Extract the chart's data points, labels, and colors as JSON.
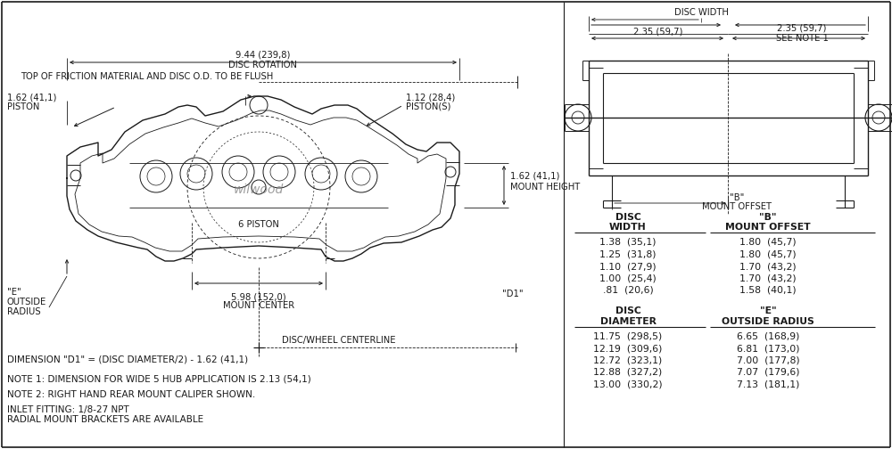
{
  "bg_color": "#ffffff",
  "line_color": "#1a1a1a",
  "text_color": "#1a1a1a",
  "top_note": "TOP OF FRICTION MATERIAL AND DISC O.D. TO BE FLUSH",
  "dim_9_44": "9.44 (239,8)",
  "dim_disc_rotation": "DISC ROTATION",
  "dim_1_62_piston_val": "1.62 (41,1)",
  "dim_1_62_piston_lbl": "PISTON",
  "dim_1_12_val": "1.12 (28,4)",
  "dim_1_12_lbl": "PISTON(S)",
  "dim_1_62_mount_val": "1.62 (41,1)",
  "dim_1_62_mount_lbl": "MOUNT HEIGHT",
  "dim_6piston": "6 PISTON",
  "dim_e_1": "\"E\"",
  "dim_e_2": "OUTSIDE",
  "dim_e_3": "RADIUS",
  "dim_5_98_val": "5.98 (152,0)",
  "dim_5_98_lbl": "MOUNT CENTER",
  "dim_d1": "\"D1\"",
  "dim_disc_wheel": "DISC/WHEEL CENTERLINE",
  "dim_disc_width": "DISC WIDTH",
  "dim_2_35_left": "2.35 (59,7)",
  "dim_2_35_right": "2.35 (59,7)",
  "dim_see_note1": "SEE NOTE 1",
  "dim_b_1": "\"B\"",
  "dim_b_2": "MOUNT OFFSET",
  "note_d1": "DIMENSION \"D1\" = (DISC DIAMETER/2) - 1.62 (41,1)",
  "note_1": "NOTE 1: DIMENSION FOR WIDE 5 HUB APPLICATION IS 2.13 (54,1)",
  "note_2": "NOTE 2: RIGHT HAND REAR MOUNT CALIPER SHOWN.",
  "note_inlet": "INLET FITTING: 1/8-27 NPT",
  "note_radial": "RADIAL MOUNT BRACKETS ARE AVAILABLE",
  "table1_col1_header1": "DISC",
  "table1_col1_header2": "WIDTH",
  "table1_col2_header1": "\"B\"",
  "table1_col2_header2": "MOUNT OFFSET",
  "table1_rows": [
    [
      "1.38  (35,1)",
      "1.80  (45,7)"
    ],
    [
      "1.25  (31,8)",
      "1.80  (45,7)"
    ],
    [
      "1.10  (27,9)",
      "1.70  (43,2)"
    ],
    [
      "1.00  (25,4)",
      "1.70  (43,2)"
    ],
    [
      ".81  (20,6)",
      "1.58  (40,1)"
    ]
  ],
  "table2_col1_header1": "DISC",
  "table2_col1_header2": "DIAMETER",
  "table2_col2_header1": "\"E\"",
  "table2_col2_header2": "OUTSIDE RADIUS",
  "table2_rows": [
    [
      "11.75  (298,5)",
      "6.65  (168,9)"
    ],
    [
      "12.19  (309,6)",
      "6.81  (173,0)"
    ],
    [
      "12.72  (323,1)",
      "7.00  (177,8)"
    ],
    [
      "12.88  (327,2)",
      "7.07  (179,6)"
    ],
    [
      "13.00  (330,2)",
      "7.13  (181,1)"
    ]
  ]
}
